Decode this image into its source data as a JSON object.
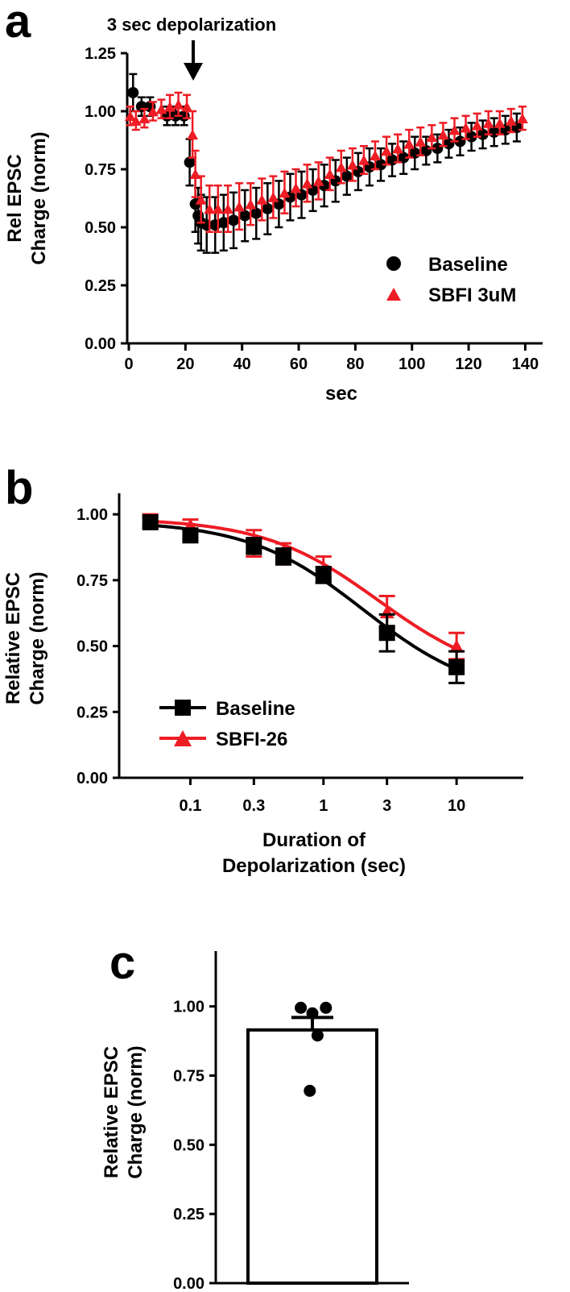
{
  "colors": {
    "baseline": "#000000",
    "sbfi": "#ee1c24"
  },
  "chart_data": [
    {
      "panel": "a",
      "type": "scatter",
      "ylabel_lines": [
        "Rel EPSC",
        "Charge (norm)"
      ],
      "xlabel": "sec",
      "xlim": [
        0,
        145
      ],
      "ylim": [
        0,
        1.25
      ],
      "xticks": [
        0,
        20,
        40,
        60,
        80,
        100,
        120,
        140
      ],
      "yticks": [
        0.0,
        0.25,
        0.5,
        0.75,
        1.0,
        1.25
      ],
      "ytick_labels": [
        "0.00",
        "0.25",
        "0.50",
        "0.75",
        "1.00",
        "1.25"
      ],
      "annotation": {
        "text": "3 sec depolarization",
        "x": 22
      },
      "legend": {
        "position": "bottom-right"
      },
      "series": [
        {
          "name": "Baseline",
          "marker": "circle",
          "color": "#000000",
          "x": [
            1.5,
            4.5,
            7.5,
            13.5,
            16.5,
            19.5,
            21.5,
            23.5,
            24.5,
            25.5,
            27.5,
            30.5,
            33.5,
            37,
            41,
            45,
            49,
            53,
            57,
            61,
            65,
            69,
            73,
            77,
            81,
            85,
            89,
            93,
            97,
            101,
            105,
            109,
            113,
            117,
            121,
            125,
            129,
            133,
            137
          ],
          "y": [
            1.08,
            1.02,
            1.02,
            0.98,
            0.98,
            0.98,
            0.78,
            0.6,
            0.55,
            0.52,
            0.51,
            0.51,
            0.52,
            0.53,
            0.55,
            0.56,
            0.58,
            0.6,
            0.63,
            0.64,
            0.66,
            0.68,
            0.7,
            0.72,
            0.74,
            0.76,
            0.77,
            0.79,
            0.8,
            0.82,
            0.83,
            0.84,
            0.86,
            0.87,
            0.89,
            0.9,
            0.91,
            0.92,
            0.93
          ],
          "err": [
            0.08,
            0.04,
            0.04,
            0.04,
            0.04,
            0.04,
            0.1,
            0.12,
            0.12,
            0.12,
            0.12,
            0.12,
            0.12,
            0.12,
            0.11,
            0.11,
            0.11,
            0.1,
            0.1,
            0.1,
            0.09,
            0.09,
            0.09,
            0.08,
            0.08,
            0.08,
            0.07,
            0.07,
            0.07,
            0.07,
            0.06,
            0.06,
            0.06,
            0.06,
            0.06,
            0.06,
            0.06,
            0.06,
            0.06
          ]
        },
        {
          "name": "SBFI 3uM",
          "marker": "triangle",
          "color": "#ee1c24",
          "x": [
            0.5,
            2.5,
            5.5,
            8.5,
            11.5,
            14.5,
            17.5,
            20.5,
            22.5,
            23.5,
            25.5,
            28.5,
            31.5,
            35,
            39,
            43,
            47,
            51,
            55,
            59,
            63,
            67,
            71,
            75,
            79,
            83,
            87,
            91,
            95,
            99,
            103,
            107,
            111,
            115,
            119,
            123,
            127,
            131,
            135,
            139
          ],
          "y": [
            0.98,
            0.96,
            0.97,
            1.0,
            1.01,
            1.02,
            1.03,
            1.02,
            0.9,
            0.73,
            0.62,
            0.58,
            0.58,
            0.58,
            0.59,
            0.6,
            0.62,
            0.63,
            0.65,
            0.67,
            0.69,
            0.7,
            0.73,
            0.76,
            0.77,
            0.79,
            0.81,
            0.83,
            0.84,
            0.86,
            0.87,
            0.89,
            0.9,
            0.92,
            0.93,
            0.94,
            0.95,
            0.95,
            0.96,
            0.97
          ],
          "err": [
            0.04,
            0.04,
            0.04,
            0.04,
            0.04,
            0.05,
            0.05,
            0.05,
            0.1,
            0.1,
            0.1,
            0.1,
            0.1,
            0.1,
            0.1,
            0.09,
            0.09,
            0.09,
            0.09,
            0.08,
            0.08,
            0.08,
            0.07,
            0.07,
            0.07,
            0.06,
            0.06,
            0.06,
            0.06,
            0.06,
            0.06,
            0.05,
            0.05,
            0.05,
            0.05,
            0.05,
            0.05,
            0.05,
            0.05,
            0.05
          ]
        }
      ]
    },
    {
      "panel": "b",
      "type": "line",
      "ylabel_lines": [
        "Relative EPSC",
        "Charge (norm)"
      ],
      "xlabel_lines": [
        "Duration of",
        "Depolarization (sec)"
      ],
      "xscale": "log",
      "xlim": [
        0.03,
        30
      ],
      "ylim": [
        0,
        1.08
      ],
      "xticks": [
        0.1,
        0.3,
        1,
        3,
        10
      ],
      "xtick_labels": [
        "0.1",
        "0.3",
        "1",
        "3",
        "10"
      ],
      "yticks": [
        0.0,
        0.25,
        0.5,
        0.75,
        1.0
      ],
      "ytick_labels": [
        "0.00",
        "0.25",
        "0.50",
        "0.75",
        "1.00"
      ],
      "legend": {
        "position": "bottom-left"
      },
      "series": [
        {
          "name": "Baseline",
          "marker": "square",
          "color": "#000000",
          "x": [
            0.05,
            0.1,
            0.3,
            0.5,
            1,
            3,
            10
          ],
          "y": [
            0.97,
            0.92,
            0.88,
            0.84,
            0.77,
            0.55,
            0.42
          ],
          "err": [
            0.02,
            0.02,
            0.03,
            0.03,
            0.03,
            0.07,
            0.06
          ],
          "fit": {
            "top": 0.975,
            "bottom": 0.3,
            "ec50": 2.0,
            "hill": 1.0
          }
        },
        {
          "name": "SBFI-26",
          "marker": "triangle",
          "color": "#ee1c24",
          "x": [
            0.05,
            0.1,
            0.3,
            0.5,
            1,
            3,
            10
          ],
          "y": [
            0.98,
            0.96,
            0.89,
            0.85,
            0.79,
            0.63,
            0.5
          ],
          "err": [
            0.02,
            0.02,
            0.05,
            0.04,
            0.05,
            0.06,
            0.05
          ],
          "fit": {
            "top": 0.985,
            "bottom": 0.36,
            "ec50": 2.6,
            "hill": 1.0
          }
        }
      ]
    },
    {
      "panel": "c",
      "type": "bar",
      "ylabel_lines": [
        "Relative EPSC",
        "Charge (norm)"
      ],
      "ylim": [
        0,
        1.2
      ],
      "yticks": [
        0.0,
        0.25,
        0.5,
        0.75,
        1.0
      ],
      "ytick_labels": [
        "0.00",
        "0.25",
        "0.50",
        "0.75",
        "1.00"
      ],
      "bar": {
        "value": 0.915,
        "err": 0.045
      },
      "points": [
        {
          "x": -0.18,
          "y": 0.995
        },
        {
          "x": 0.0,
          "y": 0.975
        },
        {
          "x": 0.21,
          "y": 0.995
        },
        {
          "x": 0.08,
          "y": 0.895
        },
        {
          "x": -0.04,
          "y": 0.695
        }
      ]
    }
  ]
}
